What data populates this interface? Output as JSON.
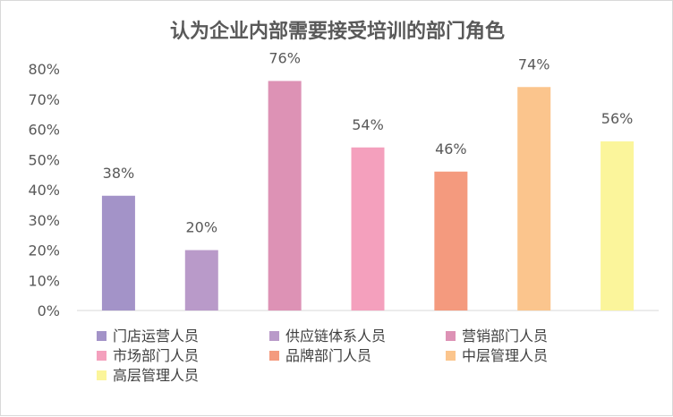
{
  "chart_data": {
    "type": "bar",
    "title": "认为企业内部需要接受培训的部门角色",
    "xlabel": "",
    "ylabel": "",
    "ylim": [
      0,
      80
    ],
    "y_ticks": [
      "0%",
      "10%",
      "20%",
      "30%",
      "40%",
      "50%",
      "60%",
      "70%",
      "80%"
    ],
    "y_tick_values": [
      0,
      10,
      20,
      30,
      40,
      50,
      60,
      70,
      80
    ],
    "grid": false,
    "legend_position": "bottom",
    "series": [
      {
        "name": "门店运营人员",
        "value": 38,
        "label": "38%",
        "color": "#a393c8"
      },
      {
        "name": "供应链体系人员",
        "value": 20,
        "label": "20%",
        "color": "#b99ac9"
      },
      {
        "name": "营销部门人员",
        "value": 76,
        "label": "76%",
        "color": "#dd92b5"
      },
      {
        "name": "市场部门人员",
        "value": 54,
        "label": "54%",
        "color": "#f4a0bd"
      },
      {
        "name": "品牌部门人员",
        "value": 46,
        "label": "46%",
        "color": "#f49a7e"
      },
      {
        "name": "中层管理人员",
        "value": 74,
        "label": "74%",
        "color": "#fbc58d"
      },
      {
        "name": "高层管理人员",
        "value": 56,
        "label": "56%",
        "color": "#fbf59b"
      }
    ]
  }
}
